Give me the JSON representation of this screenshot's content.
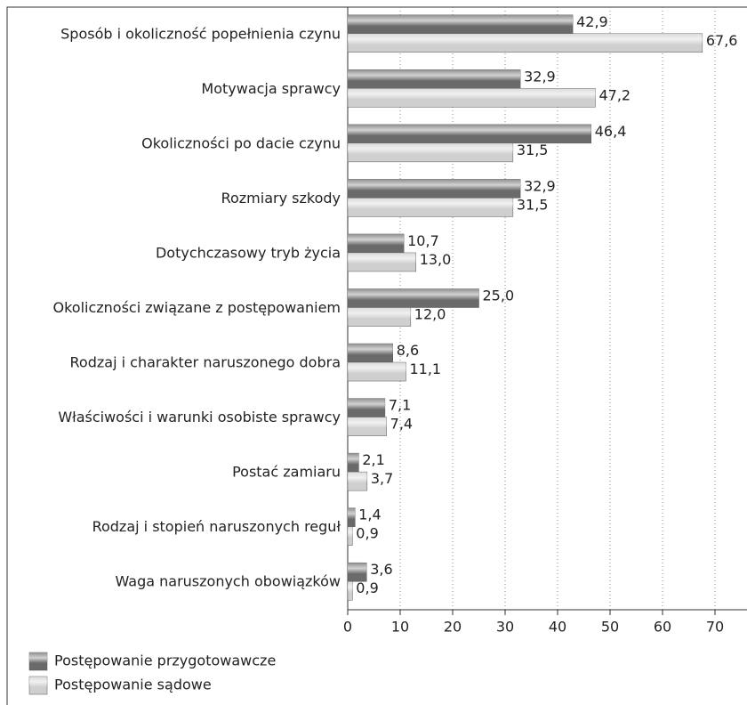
{
  "chart_data": {
    "type": "bar",
    "orientation": "horizontal",
    "categories": [
      "Sposób i okoliczność popełnienia czynu",
      "Motywacja sprawcy",
      "Okoliczności po dacie czynu",
      "Rozmiary szkody",
      "Dotychczasowy tryb życia",
      "Okoliczności związane z postępowaniem",
      "Rodzaj i charakter naruszonego dobra",
      "Właściwości i warunki osobiste sprawcy",
      "Postać zamiaru",
      "Rodzaj i stopień naruszonych reguł",
      "Waga naruszonych obowiązków"
    ],
    "series": [
      {
        "name": "Postępowanie przygotowawcze",
        "color": "#6a6a6a",
        "values": [
          42.9,
          32.9,
          46.4,
          32.9,
          10.7,
          25.0,
          8.6,
          7.1,
          2.1,
          1.4,
          3.6
        ],
        "value_labels": [
          "42,9",
          "32,9",
          "46,4",
          "32,9",
          "10,7",
          "25,0",
          "8,6",
          "7,1",
          "2,1",
          "1,4",
          "3,6"
        ]
      },
      {
        "name": "Postępowanie sądowe",
        "color": "#cfcfcf",
        "values": [
          67.6,
          47.2,
          31.5,
          31.5,
          13.0,
          12.0,
          11.1,
          7.4,
          3.7,
          0.9,
          0.9
        ],
        "value_labels": [
          "67,6",
          "47,2",
          "31,5",
          "31,5",
          "13,0",
          "12,0",
          "11,1",
          "7,4",
          "3,7",
          "0,9",
          "0,9"
        ]
      }
    ],
    "xlim": [
      0,
      76
    ],
    "xticks": [
      0,
      10,
      20,
      30,
      40,
      50,
      60,
      70
    ],
    "grid": true,
    "legend": "bottom-left"
  }
}
